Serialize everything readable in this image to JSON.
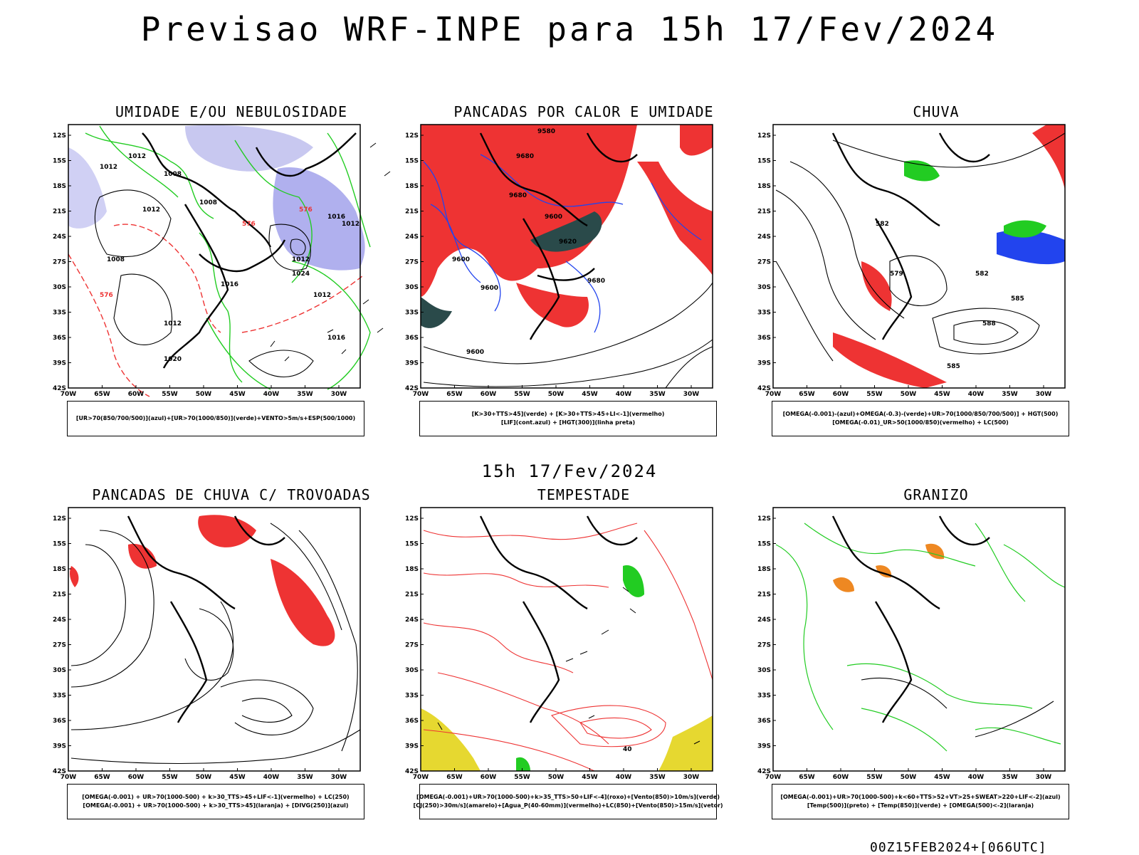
{
  "main_title": "Previsao WRF-INPE  para 15h 17/Fev/2024",
  "mid_title": "15h 17/Fev/2024",
  "footer": "00Z15FEB2024+[066UTC]",
  "lat_labels": [
    "12S",
    "15S",
    "18S",
    "21S",
    "24S",
    "27S",
    "30S",
    "33S",
    "36S",
    "39S",
    "42S"
  ],
  "lon_labels": [
    "70W",
    "65W",
    "60W",
    "55W",
    "50W",
    "45W",
    "40W",
    "35W",
    "30W"
  ],
  "colors": {
    "blue": "#2244ee",
    "green": "#22cc22",
    "red": "#ee3333",
    "lavender": "#b0b0ee",
    "dark_teal": "#2a4a4a",
    "yellow": "#e6d830",
    "orange": "#ee8822",
    "purple": "#aa22cc"
  },
  "panels": [
    {
      "title": "UMIDADE E/OU NEBULOSIDADE",
      "legend": [
        "[UR>70(850/700/500)](azul)+[UR>70(1000/850)](verde)+VENTO>5m/s+ESP(500/1000)"
      ],
      "labels": [
        "1012",
        "1012",
        "1012",
        "1008",
        "1008",
        "1008",
        "1012",
        "1012",
        "1012",
        "1016",
        "1016",
        "1020",
        "1024",
        "576",
        "576",
        "576",
        "1016",
        "1012"
      ]
    },
    {
      "title": "PANCADAS POR CALOR E UMIDADE",
      "legend": [
        "[K>30+TTS>45](verde) + [K>30+TTS>45+LI<-1](vermelho)",
        "[LIF](cont.azul) + [HGT(300)](linha preta)"
      ],
      "labels": [
        "9580",
        "9680",
        "9680",
        "9600",
        "9600",
        "9620",
        "9600",
        "9680",
        "9600"
      ]
    },
    {
      "title": "CHUVA",
      "legend": [
        "[OMEGA(-0.001)-(azul)+OMEGA(-0.3)-(verde)+UR>70(1000/850/700/500)] + HGT(500)",
        "[OMEGA(-0.01)_UR>50(1000/850)(vermelho) + LC(500)"
      ],
      "labels": [
        "582",
        "579",
        "582",
        "585",
        "588",
        "585"
      ]
    },
    {
      "title": "PANCADAS DE CHUVA C/ TROVOADAS",
      "legend": [
        "[OMEGA(-0.001) + UR>70(1000-500) + k>30_TTS>45+LIF<-1](vermelho) + LC(250)",
        "[OMEGA(-0.001) + UR>70(1000-500) + k>30_TTS>45](laranja) + [DIVG(250)](azul)"
      ],
      "labels": []
    },
    {
      "title": "TEMPESTADE",
      "legend": [
        "[OMEGA(-0.001)+UR>70(1000-500)+k>35_TTS>50+LIF<-4](roxo)+[Vento(850)>10m/s](verde)",
        "[CJ(250)>30m/s](amarelo)+[Agua_P(40-60mm)](vermelho)+LC(850)+[Vento(850)>15m/s](vetor)"
      ],
      "labels": [
        "40"
      ]
    },
    {
      "title": "GRANIZO",
      "legend": [
        "[OMEGA(-0.001)+UR>70(1000-500)+k<60+TTS>52+VT>25+SWEAT>220+LIF<-2](azul)",
        "[Temp(500)](preto) + [Temp(850)](verde) + [OMEGA(500)<-2](laranja)"
      ],
      "labels": []
    }
  ]
}
